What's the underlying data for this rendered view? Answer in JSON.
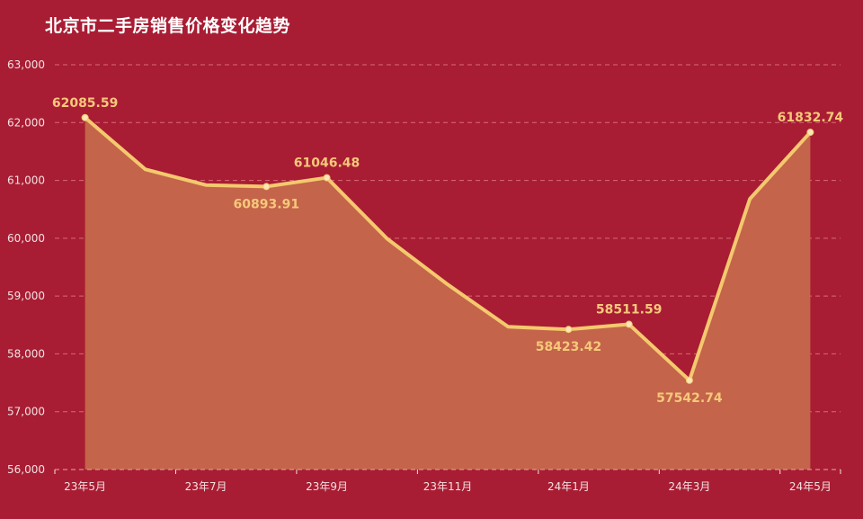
{
  "title": "北京市二手房销售价格变化趋势",
  "colors": {
    "background": "#a81d33",
    "line": "#f4c96e",
    "area": "#c4644a",
    "label": "#f6c87a",
    "grid": "#d86a78",
    "axis_text": "#f3e1e3",
    "title": "#ffffff"
  },
  "chart_data": {
    "type": "area",
    "title": "北京市二手房销售价格变化趋势",
    "xlabel": "",
    "ylabel": "",
    "ylim": [
      56000,
      63000
    ],
    "yticks": [
      "56,000",
      "57,000",
      "58,000",
      "59,000",
      "60,000",
      "61,000",
      "62,000",
      "63,000"
    ],
    "ytick_values": [
      56000,
      57000,
      58000,
      59000,
      60000,
      61000,
      62000,
      63000
    ],
    "grid": true,
    "legend": null,
    "categories": [
      "23年5月",
      "23年6月",
      "23年7月",
      "23年8月",
      "23年9月",
      "23年10月",
      "23年11月",
      "23年12月",
      "24年1月",
      "24年2月",
      "24年3月",
      "24年4月",
      "24年5月"
    ],
    "xtick_labels_shown": [
      "23年5月",
      "23年7月",
      "23年9月",
      "23年11月",
      "24年1月",
      "24年3月",
      "24年5月"
    ],
    "series": [
      {
        "name": "二手房销售价格",
        "values": [
          62085.59,
          61190,
          60920,
          60893.91,
          61046.48,
          59990,
          59200,
          58470,
          58423.42,
          58511.59,
          57542.74,
          60680,
          61832.74
        ]
      }
    ],
    "annotations": [
      {
        "index": 0,
        "text": "62085.59",
        "position": "above"
      },
      {
        "index": 3,
        "text": "60893.91",
        "position": "below"
      },
      {
        "index": 4,
        "text": "61046.48",
        "position": "above"
      },
      {
        "index": 8,
        "text": "58423.42",
        "position": "below"
      },
      {
        "index": 9,
        "text": "58511.59",
        "position": "above"
      },
      {
        "index": 10,
        "text": "57542.74",
        "position": "below"
      },
      {
        "index": 12,
        "text": "61832.74",
        "position": "above"
      }
    ]
  }
}
